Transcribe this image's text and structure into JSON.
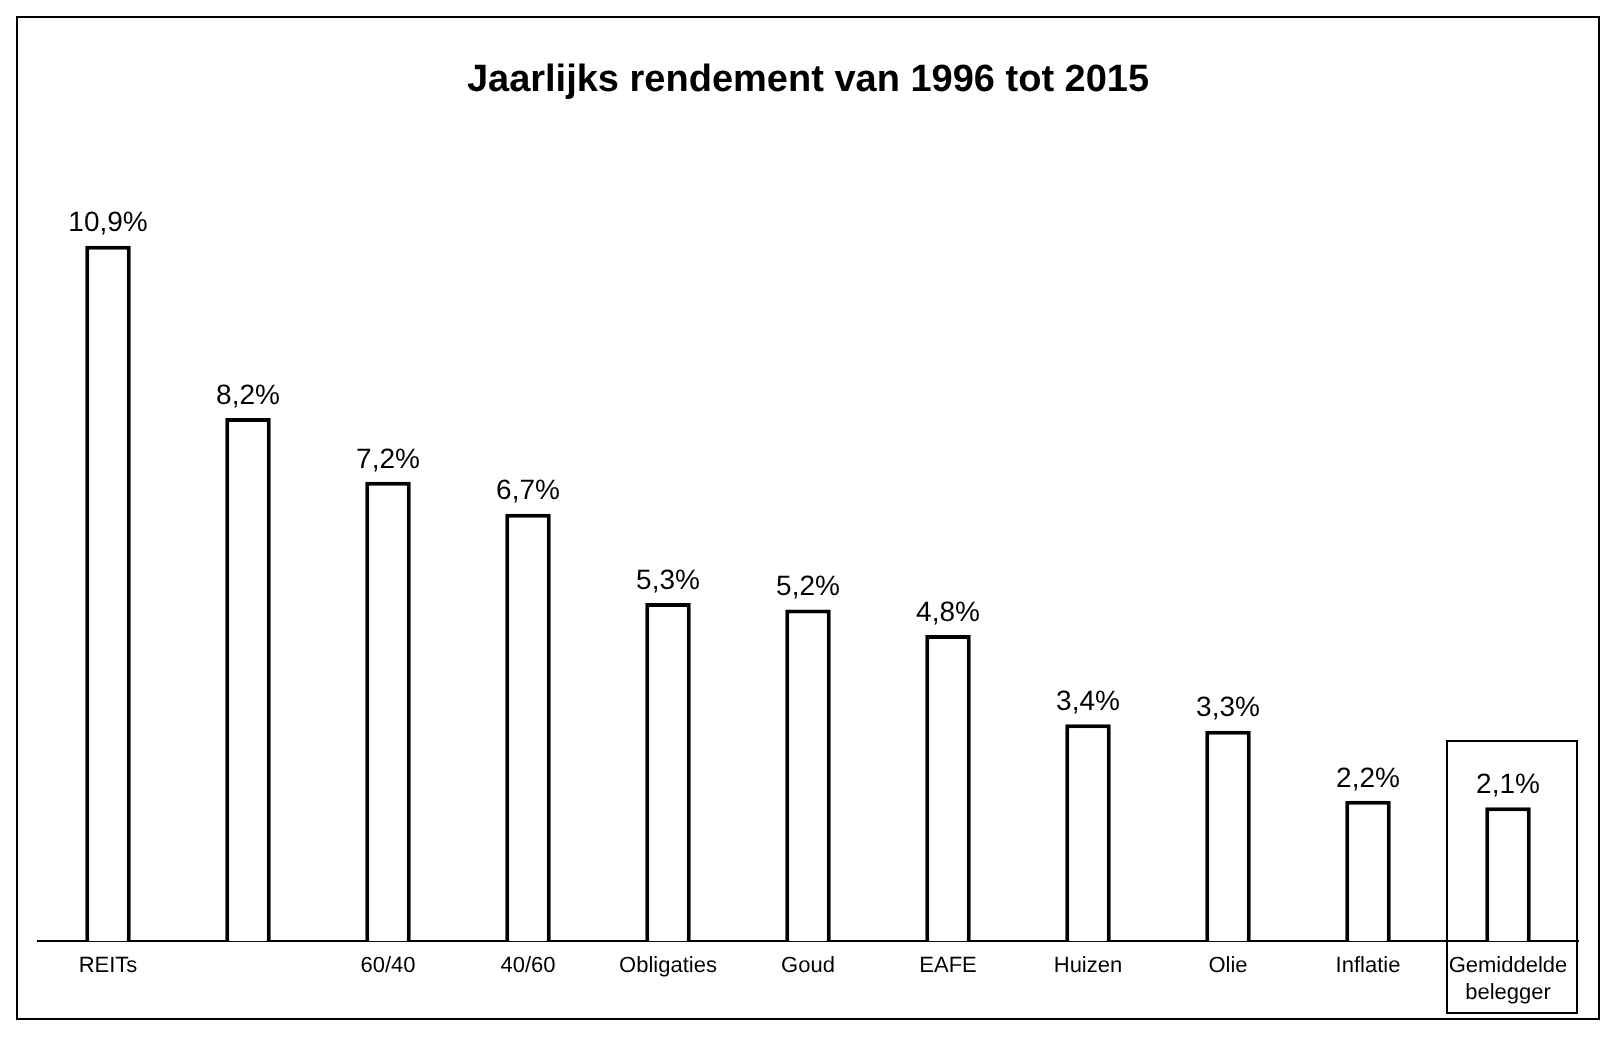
{
  "chart_data": {
    "type": "bar",
    "title": "Jaarlijks rendement van 1996 tot 2015",
    "categories": [
      "REITs",
      null,
      "60/40",
      "40/60",
      "Obligaties",
      "Goud",
      "EAFE",
      "Huizen",
      "Olie",
      "Inflatie",
      "Gemiddelde belegger"
    ],
    "values": [
      10.9,
      8.2,
      7.2,
      6.7,
      5.3,
      5.2,
      4.8,
      3.4,
      3.3,
      2.2,
      2.1
    ],
    "value_labels": [
      "10,9%",
      "8,2%",
      "7,2%",
      "6,7%",
      "5,3%",
      "5,2%",
      "4,8%",
      "3,4%",
      "3,3%",
      "2,2%",
      "2,1%"
    ],
    "color": "#ffffff",
    "grid": false,
    "legend": false
  }
}
